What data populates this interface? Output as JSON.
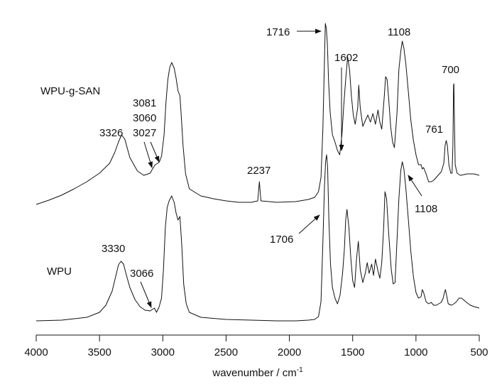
{
  "chart_data": {
    "type": "line",
    "title": "",
    "xlabel": "wavenumber / cm",
    "xlabel_superscript": "-1",
    "ylabel": "",
    "xlim": [
      4000,
      500
    ],
    "x_reversed": true,
    "x_ticks": [
      4000,
      3500,
      3000,
      2500,
      2000,
      1500,
      1000,
      500
    ],
    "y_axis_shown": false,
    "grid": false,
    "legend": "none",
    "line_color": "#111111",
    "series": [
      {
        "name": "WPU-g-SAN",
        "label": "WPU-g-SAN",
        "points": [
          [
            4000,
            288
          ],
          [
            3900,
            282
          ],
          [
            3800,
            275
          ],
          [
            3700,
            266
          ],
          [
            3600,
            256
          ],
          [
            3500,
            244
          ],
          [
            3420,
            230
          ],
          [
            3380,
            215
          ],
          [
            3350,
            200
          ],
          [
            3326,
            190
          ],
          [
            3300,
            196
          ],
          [
            3260,
            222
          ],
          [
            3200,
            241
          ],
          [
            3150,
            247
          ],
          [
            3100,
            244
          ],
          [
            3081,
            238
          ],
          [
            3060,
            232
          ],
          [
            3040,
            230
          ],
          [
            3027,
            228
          ],
          [
            3010,
            220
          ],
          [
            2990,
            190
          ],
          [
            2975,
            145
          ],
          [
            2960,
            112
          ],
          [
            2945,
            95
          ],
          [
            2930,
            88
          ],
          [
            2910,
            96
          ],
          [
            2895,
            110
          ],
          [
            2880,
            128
          ],
          [
            2865,
            135
          ],
          [
            2855,
            160
          ],
          [
            2840,
            205
          ],
          [
            2820,
            245
          ],
          [
            2790,
            266
          ],
          [
            2700,
            276
          ],
          [
            2600,
            280
          ],
          [
            2500,
            283
          ],
          [
            2400,
            285
          ],
          [
            2300,
            285
          ],
          [
            2250,
            283
          ],
          [
            2237,
            256
          ],
          [
            2225,
            283
          ],
          [
            2100,
            285
          ],
          [
            1950,
            284
          ],
          [
            1850,
            281
          ],
          [
            1800,
            278
          ],
          [
            1770,
            270
          ],
          [
            1750,
            250
          ],
          [
            1735,
            180
          ],
          [
            1722,
            80
          ],
          [
            1716,
            33
          ],
          [
            1708,
            40
          ],
          [
            1700,
            62
          ],
          [
            1690,
            115
          ],
          [
            1678,
            158
          ],
          [
            1660,
            190
          ],
          [
            1640,
            200
          ],
          [
            1620,
            212
          ],
          [
            1602,
            218
          ],
          [
            1585,
            190
          ],
          [
            1570,
            148
          ],
          [
            1555,
            112
          ],
          [
            1540,
            80
          ],
          [
            1525,
            98
          ],
          [
            1510,
            135
          ],
          [
            1495,
            162
          ],
          [
            1480,
            175
          ],
          [
            1460,
            152
          ],
          [
            1452,
            120
          ],
          [
            1440,
            152
          ],
          [
            1420,
            178
          ],
          [
            1400,
            170
          ],
          [
            1380,
            162
          ],
          [
            1360,
            172
          ],
          [
            1340,
            160
          ],
          [
            1320,
            175
          ],
          [
            1300,
            155
          ],
          [
            1285,
            172
          ],
          [
            1270,
            182
          ],
          [
            1250,
            135
          ],
          [
            1240,
            108
          ],
          [
            1228,
            112
          ],
          [
            1215,
            140
          ],
          [
            1200,
            178
          ],
          [
            1185,
            200
          ],
          [
            1170,
            208
          ],
          [
            1150,
            160
          ],
          [
            1135,
            98
          ],
          [
            1120,
            72
          ],
          [
            1108,
            58
          ],
          [
            1095,
            68
          ],
          [
            1080,
            90
          ],
          [
            1060,
            130
          ],
          [
            1040,
            170
          ],
          [
            1020,
            198
          ],
          [
            1000,
            218
          ],
          [
            980,
            232
          ],
          [
            960,
            232
          ],
          [
            950,
            238
          ],
          [
            940,
            236
          ],
          [
            920,
            245
          ],
          [
            900,
            256
          ],
          [
            880,
            256
          ],
          [
            860,
            254
          ],
          [
            840,
            250
          ],
          [
            820,
            246
          ],
          [
            800,
            242
          ],
          [
            780,
            230
          ],
          [
            770,
            205
          ],
          [
            761,
            198
          ],
          [
            752,
            205
          ],
          [
            740,
            232
          ],
          [
            725,
            244
          ],
          [
            715,
            244
          ],
          [
            708,
            205
          ],
          [
            703,
            120
          ],
          [
            700,
            118
          ],
          [
            697,
            160
          ],
          [
            690,
            232
          ],
          [
            675,
            244
          ],
          [
            650,
            247
          ],
          [
            620,
            246
          ],
          [
            600,
            245
          ],
          [
            570,
            245
          ],
          [
            540,
            245
          ],
          [
            500,
            247
          ]
        ]
      },
      {
        "name": "WPU",
        "label": "WPU",
        "points": [
          [
            4000,
            452
          ],
          [
            3800,
            451
          ],
          [
            3600,
            447
          ],
          [
            3500,
            440
          ],
          [
            3450,
            430
          ],
          [
            3400,
            410
          ],
          [
            3370,
            388
          ],
          [
            3350,
            373
          ],
          [
            3330,
            368
          ],
          [
            3310,
            372
          ],
          [
            3290,
            386
          ],
          [
            3260,
            405
          ],
          [
            3220,
            422
          ],
          [
            3180,
            432
          ],
          [
            3140,
            437
          ],
          [
            3100,
            438
          ],
          [
            3066,
            434
          ],
          [
            3050,
            440
          ],
          [
            3030,
            433
          ],
          [
            3010,
            420
          ],
          [
            2995,
            380
          ],
          [
            2980,
            320
          ],
          [
            2965,
            292
          ],
          [
            2950,
            283
          ],
          [
            2930,
            276
          ],
          [
            2910,
            285
          ],
          [
            2895,
            300
          ],
          [
            2880,
            310
          ],
          [
            2865,
            305
          ],
          [
            2850,
            345
          ],
          [
            2835,
            400
          ],
          [
            2815,
            428
          ],
          [
            2790,
            440
          ],
          [
            2700,
            447
          ],
          [
            2500,
            450
          ],
          [
            2300,
            451
          ],
          [
            2100,
            452
          ],
          [
            1950,
            452
          ],
          [
            1850,
            451
          ],
          [
            1800,
            450
          ],
          [
            1770,
            446
          ],
          [
            1750,
            425
          ],
          [
            1735,
            340
          ],
          [
            1722,
            260
          ],
          [
            1714,
            228
          ],
          [
            1706,
            218
          ],
          [
            1698,
            235
          ],
          [
            1688,
            310
          ],
          [
            1675,
            372
          ],
          [
            1660,
            405
          ],
          [
            1640,
            420
          ],
          [
            1620,
            428
          ],
          [
            1600,
            416
          ],
          [
            1580,
            385
          ],
          [
            1565,
            350
          ],
          [
            1555,
            310
          ],
          [
            1545,
            295
          ],
          [
            1530,
            320
          ],
          [
            1515,
            362
          ],
          [
            1500,
            395
          ],
          [
            1485,
            405
          ],
          [
            1470,
            365
          ],
          [
            1455,
            340
          ],
          [
            1440,
            380
          ],
          [
            1420,
            398
          ],
          [
            1400,
            385
          ],
          [
            1385,
            370
          ],
          [
            1370,
            385
          ],
          [
            1350,
            372
          ],
          [
            1335,
            388
          ],
          [
            1320,
            365
          ],
          [
            1300,
            382
          ],
          [
            1285,
            392
          ],
          [
            1270,
            370
          ],
          [
            1255,
            320
          ],
          [
            1245,
            270
          ],
          [
            1232,
            280
          ],
          [
            1215,
            330
          ],
          [
            1195,
            380
          ],
          [
            1180,
            400
          ],
          [
            1165,
            398
          ],
          [
            1150,
            340
          ],
          [
            1135,
            280
          ],
          [
            1120,
            240
          ],
          [
            1108,
            228
          ],
          [
            1095,
            238
          ],
          [
            1080,
            265
          ],
          [
            1060,
            310
          ],
          [
            1040,
            355
          ],
          [
            1020,
            390
          ],
          [
            1000,
            412
          ],
          [
            980,
            420
          ],
          [
            960,
            418
          ],
          [
            950,
            408
          ],
          [
            940,
            412
          ],
          [
            920,
            425
          ],
          [
            900,
            428
          ],
          [
            880,
            426
          ],
          [
            860,
            430
          ],
          [
            840,
            430
          ],
          [
            820,
            428
          ],
          [
            800,
            426
          ],
          [
            785,
            420
          ],
          [
            775,
            412
          ],
          [
            767,
            408
          ],
          [
            758,
            416
          ],
          [
            745,
            428
          ],
          [
            720,
            430
          ],
          [
            700,
            428
          ],
          [
            680,
            425
          ],
          [
            660,
            420
          ],
          [
            640,
            420
          ],
          [
            620,
            423
          ],
          [
            600,
            426
          ],
          [
            570,
            430
          ],
          [
            540,
            432
          ],
          [
            500,
            434
          ]
        ]
      }
    ],
    "annotations": [
      {
        "series": "WPU-g-SAN",
        "text": "3326",
        "x": 3326
      },
      {
        "series": "WPU-g-SAN",
        "text": "3081",
        "x": 3081
      },
      {
        "series": "WPU-g-SAN",
        "text": "3060",
        "x": 3060
      },
      {
        "series": "WPU-g-SAN",
        "text": "3027",
        "x": 3027
      },
      {
        "series": "WPU-g-SAN",
        "text": "2237",
        "x": 2237
      },
      {
        "series": "WPU-g-SAN",
        "text": "1716",
        "x": 1716
      },
      {
        "series": "WPU-g-SAN",
        "text": "1602",
        "x": 1602
      },
      {
        "series": "WPU-g-SAN",
        "text": "1108",
        "x": 1108
      },
      {
        "series": "WPU-g-SAN",
        "text": "761",
        "x": 761
      },
      {
        "series": "WPU-g-SAN",
        "text": "700",
        "x": 700
      },
      {
        "series": "WPU",
        "text": "3330",
        "x": 3330
      },
      {
        "series": "WPU",
        "text": "3066",
        "x": 3066
      },
      {
        "series": "WPU",
        "text": "1706",
        "x": 1706
      },
      {
        "series": "WPU",
        "text": "1108",
        "x": 1108
      }
    ]
  }
}
